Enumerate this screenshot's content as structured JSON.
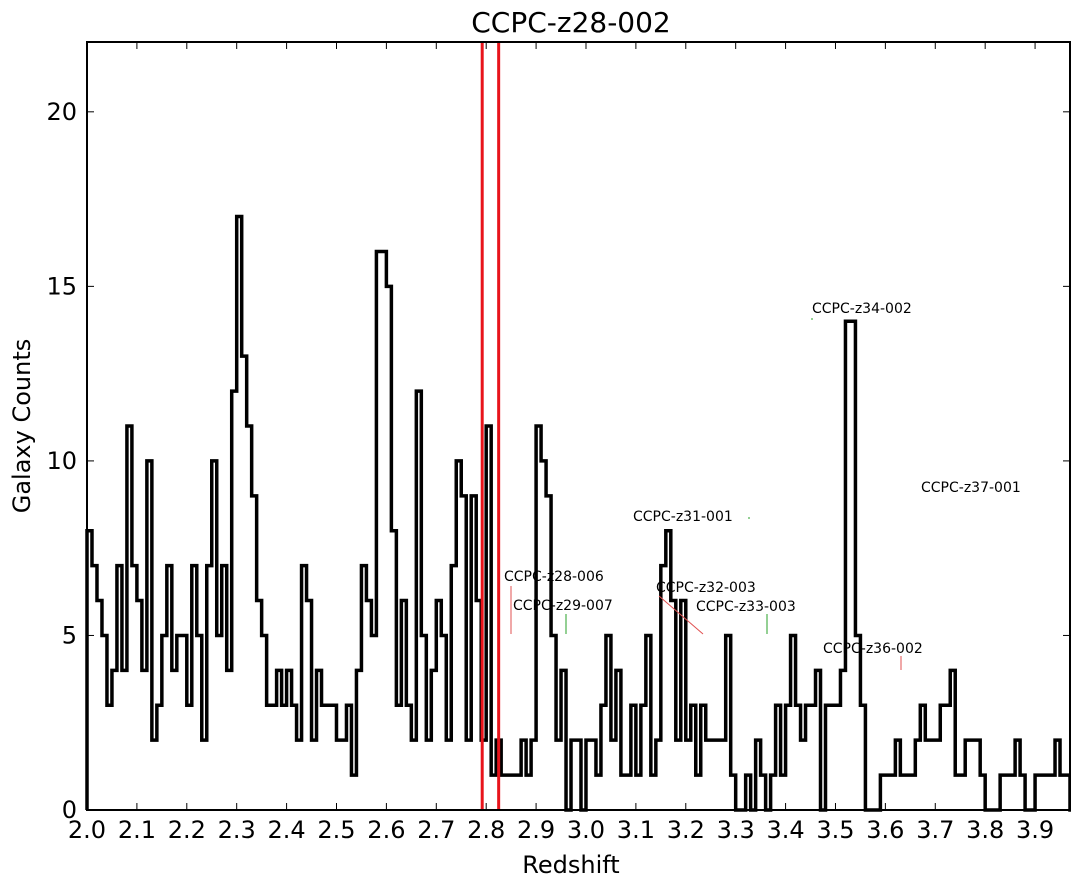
{
  "chart_data": {
    "type": "histogram",
    "title": "CCPC-z28-002",
    "xlabel": "Redshift",
    "ylabel": "Galaxy Counts",
    "xlim": [
      2.0,
      3.97
    ],
    "ylim": [
      0,
      22
    ],
    "x_ticks": [
      2.0,
      2.1,
      2.2,
      2.3,
      2.4,
      2.5,
      2.6,
      2.7,
      2.8,
      2.9,
      3.0,
      3.1,
      3.2,
      3.3,
      3.4,
      3.5,
      3.6,
      3.7,
      3.8,
      3.9
    ],
    "x_tick_labels": [
      "2.0",
      "2.1",
      "2.2",
      "2.3",
      "2.4",
      "2.5",
      "2.6",
      "2.7",
      "2.8",
      "2.9",
      "3.0",
      "3.1",
      "3.2",
      "3.3",
      "3.4",
      "3.5",
      "3.6",
      "3.7",
      "3.8",
      "3.9"
    ],
    "y_ticks": [
      0,
      5,
      10,
      15,
      20
    ],
    "y_tick_labels": [
      "0",
      "5",
      "10",
      "15",
      "20"
    ],
    "bin_start": 2.0,
    "bin_width": 0.01,
    "counts": [
      8,
      7,
      6,
      5,
      3,
      4,
      7,
      4,
      11,
      7,
      6,
      4,
      10,
      2,
      3,
      5,
      7,
      4,
      5,
      5,
      3,
      7,
      5,
      2,
      7,
      10,
      5,
      7,
      4,
      12,
      17,
      13,
      11,
      9,
      6,
      5,
      3,
      3,
      4,
      3,
      4,
      3,
      2,
      7,
      6,
      2,
      4,
      3,
      3,
      3,
      2,
      2,
      3,
      1,
      4,
      7,
      6,
      5,
      16,
      16,
      15,
      8,
      3,
      6,
      3,
      2,
      12,
      5,
      2,
      4,
      6,
      5,
      2,
      7,
      10,
      9,
      2,
      9,
      6,
      2,
      11,
      1,
      2,
      1,
      1,
      1,
      1,
      2,
      1,
      2,
      11,
      10,
      9,
      5,
      2,
      4,
      0,
      2,
      2,
      0,
      2,
      2,
      1,
      3,
      5,
      2,
      4,
      1,
      1,
      3,
      1,
      3,
      5,
      1,
      2,
      7,
      8,
      6,
      2,
      6,
      2,
      3,
      1,
      3,
      2,
      2,
      2,
      2,
      5,
      1,
      0,
      0,
      1,
      0,
      2,
      1,
      0,
      1,
      3,
      1,
      3,
      5,
      3,
      2,
      3,
      3,
      4,
      0,
      3,
      3,
      3,
      4,
      14,
      14,
      5,
      3,
      0,
      0,
      0,
      1,
      1,
      1,
      2,
      1,
      1,
      1,
      2,
      3,
      2,
      2,
      2,
      3,
      3,
      4,
      1,
      1,
      2,
      2,
      2,
      1,
      0,
      0,
      0,
      1,
      1,
      1,
      2,
      1,
      0,
      0,
      1,
      1,
      1,
      1,
      2,
      1,
      1,
      0,
      0,
      0,
      0,
      0,
      0,
      0,
      0,
      0,
      0,
      0,
      0
    ],
    "vertical_lines": [
      {
        "x": 2.792,
        "color": "#e8141b"
      },
      {
        "x": 2.825,
        "color": "#e8141b"
      }
    ],
    "annotations": [
      {
        "label": "CCPC-z28-006",
        "x": 2.855,
        "y": 5,
        "line_color": "#e05050"
      },
      {
        "label": "CCPC-z29-007",
        "x": 2.965,
        "y": 5,
        "line_color": "#28a028"
      },
      {
        "label": "CCPC-z31-001",
        "x": 3.105,
        "y": 8,
        "line_color": "#28a028"
      },
      {
        "label": "CCPC-z32-003",
        "x": 3.245,
        "y": 5,
        "line_color": "#e05050"
      },
      {
        "label": "CCPC-z33-003",
        "x": 3.37,
        "y": 5,
        "line_color": "#28a028"
      },
      {
        "label": "CCPC-z34-002",
        "x": 3.465,
        "y": 14,
        "line_color": "#28a028"
      },
      {
        "label": "CCPC-z36-002",
        "x": 3.645,
        "y": 4,
        "line_color": "#e05050"
      },
      {
        "label": "CCPC-z37-001",
        "x": 3.695,
        "y": 9,
        "line_color": "#28a028"
      }
    ],
    "grid": false
  }
}
